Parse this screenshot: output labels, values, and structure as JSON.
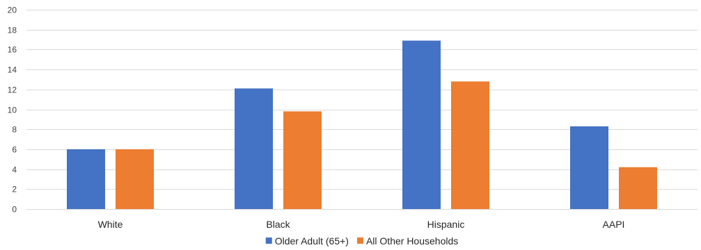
{
  "chart_data": {
    "type": "bar",
    "title": "",
    "xlabel": "",
    "ylabel": "",
    "categories": [
      "White",
      "Black",
      "Hispanic",
      "AAPI"
    ],
    "series": [
      {
        "name": "Older Adult (65+)",
        "values": [
          6.0,
          12.1,
          16.9,
          8.3
        ],
        "color": "#4472C4"
      },
      {
        "name": "All Other Households",
        "values": [
          6.0,
          9.8,
          12.8,
          4.2
        ],
        "color": "#ED7D31"
      }
    ],
    "ylim": [
      0,
      20
    ],
    "yticks": [
      0,
      2,
      4,
      6,
      8,
      10,
      12,
      14,
      16,
      18,
      20
    ],
    "grid": true,
    "legend_position": "bottom"
  }
}
